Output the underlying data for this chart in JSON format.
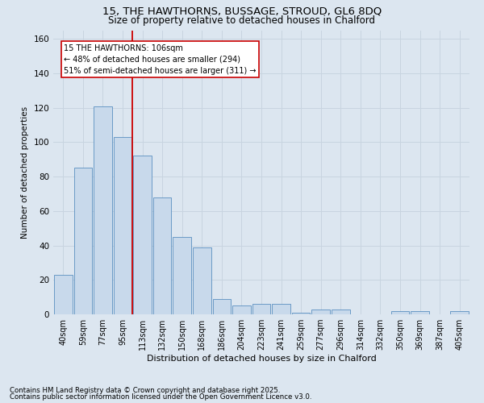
{
  "title1": "15, THE HAWTHORNS, BUSSAGE, STROUD, GL6 8DQ",
  "title2": "Size of property relative to detached houses in Chalford",
  "xlabel": "Distribution of detached houses by size in Chalford",
  "ylabel": "Number of detached properties",
  "categories": [
    "40sqm",
    "59sqm",
    "77sqm",
    "95sqm",
    "113sqm",
    "132sqm",
    "150sqm",
    "168sqm",
    "186sqm",
    "204sqm",
    "223sqm",
    "241sqm",
    "259sqm",
    "277sqm",
    "296sqm",
    "314sqm",
    "332sqm",
    "350sqm",
    "369sqm",
    "387sqm",
    "405sqm"
  ],
  "values": [
    23,
    85,
    121,
    103,
    92,
    68,
    45,
    39,
    9,
    5,
    6,
    6,
    1,
    3,
    3,
    0,
    0,
    2,
    2,
    0,
    2
  ],
  "bar_color": "#c8d9eb",
  "bar_edge_color": "#5a8fc0",
  "vline_pos": 3.5,
  "vline_label": "15 THE HAWTHORNS: 106sqm",
  "annotation_smaller": "← 48% of detached houses are smaller (294)",
  "annotation_larger": "51% of semi-detached houses are larger (311) →",
  "annotation_box_color": "#ffffff",
  "annotation_box_edge": "#cc0000",
  "vline_color": "#cc0000",
  "grid_color": "#c8d4e0",
  "background_color": "#dce6f0",
  "ylim": [
    0,
    165
  ],
  "yticks": [
    0,
    20,
    40,
    60,
    80,
    100,
    120,
    140,
    160
  ],
  "footer1": "Contains HM Land Registry data © Crown copyright and database right 2025.",
  "footer2": "Contains public sector information licensed under the Open Government Licence v3.0."
}
